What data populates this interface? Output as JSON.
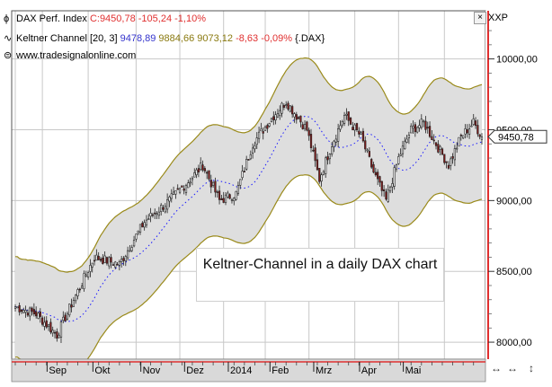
{
  "legend": {
    "line1": {
      "symbol": "ϕ",
      "name": "DAX Perf. Index",
      "close": "C:9450,78 -105,24 -1,10%"
    },
    "line2": {
      "symbol": "∿",
      "name": "Keltner Channel [20, 3]",
      "v1": "9478,89",
      "v2": "9884,66",
      "v3": "9073,12",
      "chg": "-8,63 -0,09%",
      "ref": "{.DAX}"
    },
    "line3": {
      "symbol": "⊜",
      "name": "www.tradesignalonline.com"
    }
  },
  "toolbar": {
    "xxp": "XXP",
    "box_glyph": "×"
  },
  "annotation": "Keltner-Channel in a daily DAX chart",
  "price_tag": "9450,78",
  "nav": {
    "b1": "↔",
    "b2": "↔",
    "b3": "↕"
  },
  "colors": {
    "channel_fill": "#dedede",
    "channel_border": "#9a8a1a",
    "up_candle": "#ffffff",
    "down_candle": "#8b1a1a",
    "mid_line": "#1a1aff",
    "grid": "#c8c8c8",
    "axis_bg": "#d9d9d9",
    "red_axis": "#e03030"
  },
  "chart_data": {
    "type": "candlestick",
    "title": "",
    "xlabel": "",
    "ylabel": "",
    "ylim": [
      7880,
      10340
    ],
    "x_ticks": [
      "Sep",
      "Okt",
      "Nov",
      "Dez",
      "2014",
      "Feb",
      "Mrz",
      "Apr",
      "Mai"
    ],
    "y_ticks": [
      "10000,00",
      "9500,00",
      "9000,00",
      "8500,00",
      "8000,00"
    ],
    "y_tick_values": [
      10000,
      9500,
      9000,
      8500,
      8000
    ],
    "last_value": 9450.78,
    "series_anchors": [
      {
        "day": 0,
        "close": 8250
      },
      {
        "day": 10,
        "close": 8200
      },
      {
        "day": 20,
        "close": 8050
      },
      {
        "day": 28,
        "close": 8300
      },
      {
        "day": 38,
        "close": 8600
      },
      {
        "day": 50,
        "close": 8550
      },
      {
        "day": 62,
        "close": 8850
      },
      {
        "day": 74,
        "close": 9000
      },
      {
        "day": 84,
        "close": 9150
      },
      {
        "day": 90,
        "close": 9250
      },
      {
        "day": 98,
        "close": 9000
      },
      {
        "day": 106,
        "close": 9050
      },
      {
        "day": 114,
        "close": 9400
      },
      {
        "day": 124,
        "close": 9600
      },
      {
        "day": 130,
        "close": 9700
      },
      {
        "day": 140,
        "close": 9500
      },
      {
        "day": 146,
        "close": 9150
      },
      {
        "day": 152,
        "close": 9400
      },
      {
        "day": 158,
        "close": 9600
      },
      {
        "day": 166,
        "close": 9450
      },
      {
        "day": 172,
        "close": 9200
      },
      {
        "day": 178,
        "close": 9000
      },
      {
        "day": 184,
        "close": 9300
      },
      {
        "day": 190,
        "close": 9500
      },
      {
        "day": 196,
        "close": 9550
      },
      {
        "day": 202,
        "close": 9400
      },
      {
        "day": 208,
        "close": 9250
      },
      {
        "day": 214,
        "close": 9450
      },
      {
        "day": 220,
        "close": 9550
      },
      {
        "day": 224,
        "close": 9450
      }
    ],
    "days": 225,
    "month_start_days": [
      0,
      13,
      35,
      58,
      79,
      100,
      120,
      141,
      163,
      184,
      206
    ],
    "channel_width_pct": 0.043,
    "grid": true
  }
}
